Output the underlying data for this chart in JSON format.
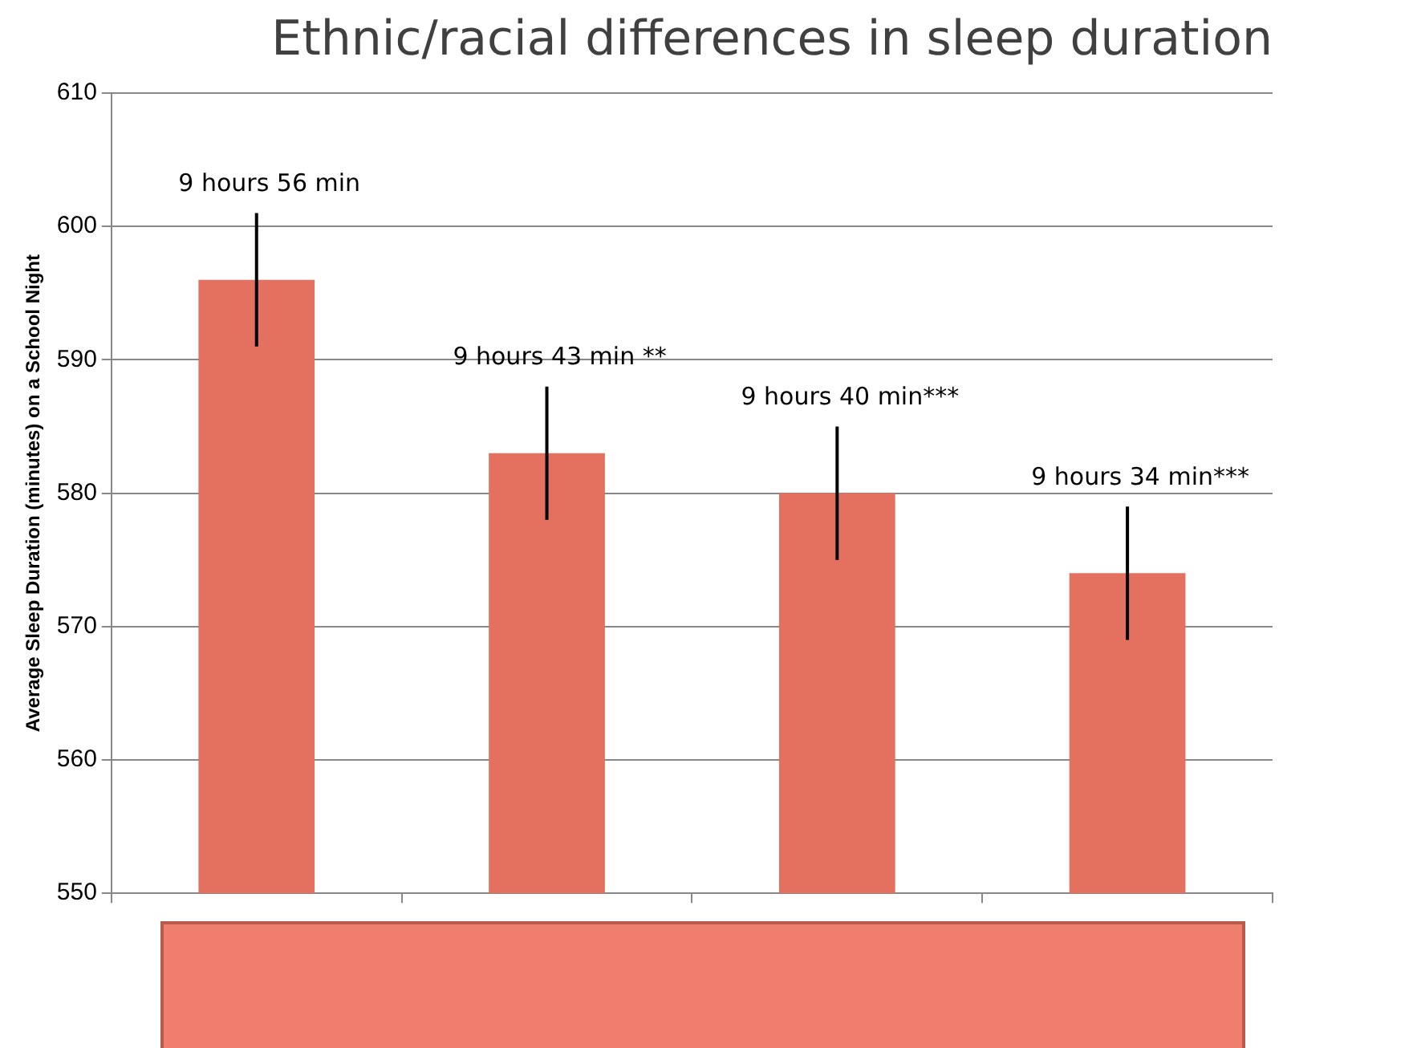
{
  "chart_data": {
    "type": "bar",
    "title": "Ethnic/racial differences in sleep duration",
    "ylabel": "Average Sleep Duration (minutes) on a School Night",
    "categories": [
      null,
      null,
      null,
      null
    ],
    "values": [
      596,
      583,
      580,
      574
    ],
    "errors": [
      5,
      5,
      5,
      5
    ],
    "annotations": [
      "9 hours 56 min",
      "9 hours 43 min **",
      "9 hours 40 min***",
      "9 hours 34 min***"
    ],
    "color": "#e4705f",
    "ylim": [
      550,
      610
    ],
    "yticks": [
      550,
      560,
      570,
      580,
      590,
      600,
      610
    ],
    "grid": "y"
  }
}
